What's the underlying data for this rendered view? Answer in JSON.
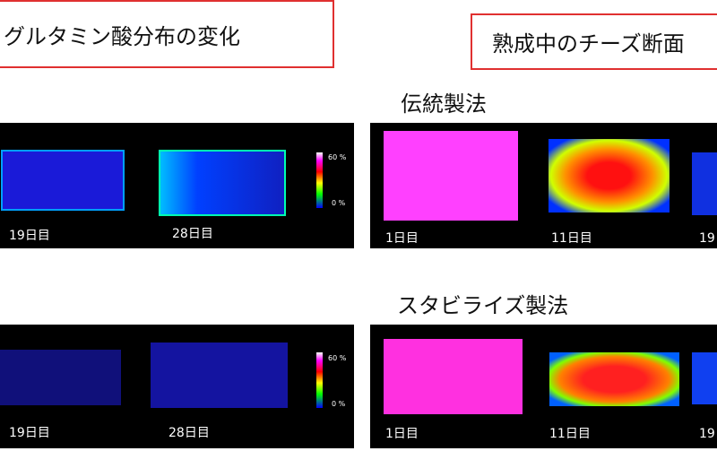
{
  "header": {
    "left_title": "グルタミン酸分布の変化",
    "right_title": "熟成中のチーズ断面"
  },
  "sections": [
    {
      "title": "伝統製法",
      "left_panel": {
        "labels": [
          "19日目",
          "28日目"
        ],
        "scale": [
          "60 %",
          "0 %"
        ]
      },
      "right_panel": {
        "labels": [
          "1日目",
          "11日目",
          "19"
        ]
      }
    },
    {
      "title": "スタビライズ製法",
      "left_panel": {
        "labels": [
          "19日目",
          "28日目"
        ],
        "scale": [
          "60 %",
          "0 %"
        ]
      },
      "right_panel": {
        "labels": [
          "1日目",
          "11日目",
          "19"
        ]
      }
    }
  ]
}
